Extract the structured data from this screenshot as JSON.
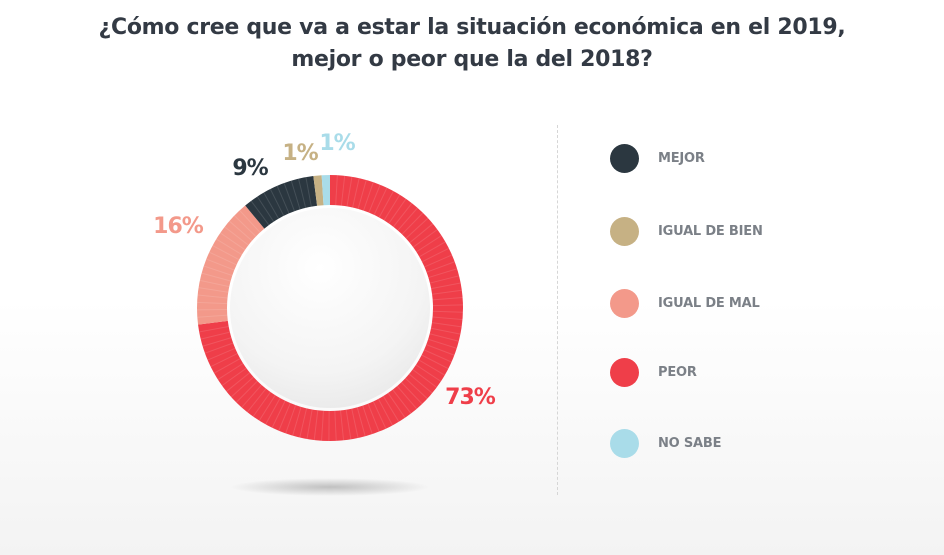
{
  "title": {
    "line1": "¿Cómo cree que va a estar la situación económica en el 2019,",
    "line2": "mejor o peor que la del 2018?"
  },
  "chart_data": {
    "type": "pie",
    "style": "donut",
    "categories": [
      "MEJOR",
      "IGUAL DE BIEN",
      "IGUAL DE MAL",
      "PEOR",
      "NO SABE"
    ],
    "values": [
      9,
      1,
      16,
      73,
      1
    ],
    "value_labels": [
      "9%",
      "1%",
      "16%",
      "73%",
      "1%"
    ],
    "colors": [
      "#2b3740",
      "#c6b184",
      "#f3998a",
      "#ef3e49",
      "#a9dce9"
    ],
    "legend_position": "right"
  }
}
